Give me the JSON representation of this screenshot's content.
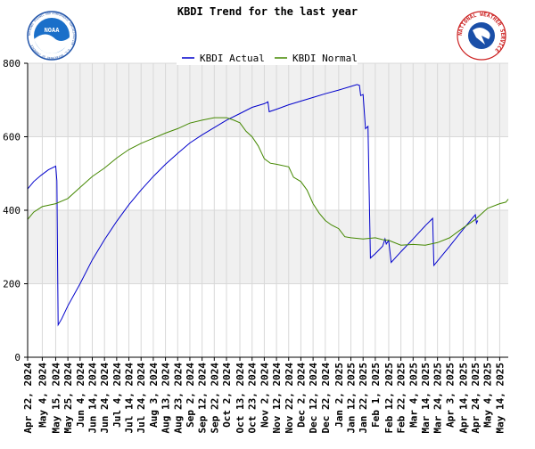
{
  "chart_data": {
    "type": "line",
    "title": "KBDI Trend for the last year",
    "ylim": [
      0,
      800
    ],
    "yticks": [
      0,
      200,
      400,
      600,
      800
    ],
    "grid": true,
    "legend_position": "top-center",
    "x_start": "2024-04-22",
    "x_end": "2025-05-21",
    "xtick_labels": [
      "Apr 22, 2024",
      "May 4, 2024",
      "May 15, 2024",
      "May 25, 2024",
      "Jun 4, 2024",
      "Jun 14, 2024",
      "Jun 24, 2024",
      "Jul 4, 2024",
      "Jul 14, 2024",
      "Jul 24, 2024",
      "Aug 3, 2024",
      "Aug 13, 2024",
      "Aug 23, 2024",
      "Sep 2, 2024",
      "Sep 12, 2024",
      "Sep 22, 2024",
      "Oct 2, 2024",
      "Oct 13, 2024",
      "Oct 23, 2024",
      "Nov 2, 2024",
      "Nov 12, 2024",
      "Nov 22, 2024",
      "Dec 2, 2024",
      "Dec 12, 2024",
      "Dec 22, 2024",
      "Jan 2, 2025",
      "Jan 12, 2025",
      "Jan 22, 2025",
      "Feb 1, 2025",
      "Feb 12, 2025",
      "Feb 22, 2025",
      "Mar 4, 2025",
      "Mar 14, 2025",
      "Mar 24, 2025",
      "Apr 3, 2025",
      "Apr 14, 2025",
      "Apr 24, 2025",
      "May 4, 2025",
      "May 14, 2025"
    ],
    "series": [
      {
        "name": "KBDI Actual",
        "color": "#0000cc",
        "points": [
          [
            "2024-04-22",
            458
          ],
          [
            "2024-04-27",
            478
          ],
          [
            "2024-05-03",
            495
          ],
          [
            "2024-05-09",
            510
          ],
          [
            "2024-05-15",
            520
          ],
          [
            "2024-05-16",
            480
          ],
          [
            "2024-05-17",
            88
          ],
          [
            "2024-05-20",
            105
          ],
          [
            "2024-05-25",
            140
          ],
          [
            "2024-06-04",
            200
          ],
          [
            "2024-06-14",
            265
          ],
          [
            "2024-06-24",
            320
          ],
          [
            "2024-07-04",
            370
          ],
          [
            "2024-07-14",
            415
          ],
          [
            "2024-07-24",
            455
          ],
          [
            "2024-08-03",
            492
          ],
          [
            "2024-08-13",
            525
          ],
          [
            "2024-08-23",
            555
          ],
          [
            "2024-09-02",
            583
          ],
          [
            "2024-09-12",
            605
          ],
          [
            "2024-09-22",
            625
          ],
          [
            "2024-10-02",
            645
          ],
          [
            "2024-10-13",
            663
          ],
          [
            "2024-10-23",
            680
          ],
          [
            "2024-11-02",
            690
          ],
          [
            "2024-11-05",
            695
          ],
          [
            "2024-11-06",
            668
          ],
          [
            "2024-11-12",
            675
          ],
          [
            "2024-11-22",
            687
          ],
          [
            "2024-12-02",
            697
          ],
          [
            "2024-12-12",
            707
          ],
          [
            "2024-12-22",
            717
          ],
          [
            "2025-01-02",
            727
          ],
          [
            "2025-01-12",
            737
          ],
          [
            "2025-01-17",
            742
          ],
          [
            "2025-01-19",
            740
          ],
          [
            "2025-01-20",
            712
          ],
          [
            "2025-01-22",
            715
          ],
          [
            "2025-01-24",
            622
          ],
          [
            "2025-01-26",
            628
          ],
          [
            "2025-01-28",
            270
          ],
          [
            "2025-02-01",
            282
          ],
          [
            "2025-02-07",
            302
          ],
          [
            "2025-02-09",
            322
          ],
          [
            "2025-02-10",
            308
          ],
          [
            "2025-02-12",
            318
          ],
          [
            "2025-02-14",
            258
          ],
          [
            "2025-02-22",
            287
          ],
          [
            "2025-03-04",
            322
          ],
          [
            "2025-03-14",
            358
          ],
          [
            "2025-03-20",
            378
          ],
          [
            "2025-03-21",
            250
          ],
          [
            "2025-03-24",
            262
          ],
          [
            "2025-04-03",
            302
          ],
          [
            "2025-04-14",
            348
          ],
          [
            "2025-04-22",
            380
          ],
          [
            "2025-04-24",
            388
          ],
          [
            "2025-04-25",
            365
          ],
          [
            "2025-04-26",
            372
          ]
        ]
      },
      {
        "name": "KBDI Normal",
        "color": "#448800",
        "points": [
          [
            "2024-04-22",
            375
          ],
          [
            "2024-04-27",
            395
          ],
          [
            "2024-05-04",
            410
          ],
          [
            "2024-05-15",
            418
          ],
          [
            "2024-05-25",
            432
          ],
          [
            "2024-06-04",
            462
          ],
          [
            "2024-06-14",
            492
          ],
          [
            "2024-06-24",
            515
          ],
          [
            "2024-07-04",
            542
          ],
          [
            "2024-07-14",
            565
          ],
          [
            "2024-07-24",
            582
          ],
          [
            "2024-08-03",
            596
          ],
          [
            "2024-08-13",
            610
          ],
          [
            "2024-08-23",
            622
          ],
          [
            "2024-09-02",
            637
          ],
          [
            "2024-09-12",
            645
          ],
          [
            "2024-09-22",
            652
          ],
          [
            "2024-10-02",
            652
          ],
          [
            "2024-10-08",
            645
          ],
          [
            "2024-10-13",
            638
          ],
          [
            "2024-10-18",
            615
          ],
          [
            "2024-10-23",
            600
          ],
          [
            "2024-10-28",
            575
          ],
          [
            "2024-11-02",
            540
          ],
          [
            "2024-11-07",
            528
          ],
          [
            "2024-11-12",
            525
          ],
          [
            "2024-11-22",
            518
          ],
          [
            "2024-11-26",
            490
          ],
          [
            "2024-12-02",
            478
          ],
          [
            "2024-12-07",
            455
          ],
          [
            "2024-12-12",
            418
          ],
          [
            "2024-12-17",
            392
          ],
          [
            "2024-12-22",
            372
          ],
          [
            "2024-12-27",
            360
          ],
          [
            "2025-01-02",
            350
          ],
          [
            "2025-01-07",
            328
          ],
          [
            "2025-01-12",
            325
          ],
          [
            "2025-01-22",
            322
          ],
          [
            "2025-02-01",
            325
          ],
          [
            "2025-02-07",
            320
          ],
          [
            "2025-02-12",
            318
          ],
          [
            "2025-02-22",
            305
          ],
          [
            "2025-03-04",
            307
          ],
          [
            "2025-03-14",
            305
          ],
          [
            "2025-03-24",
            312
          ],
          [
            "2025-04-03",
            325
          ],
          [
            "2025-04-14",
            352
          ],
          [
            "2025-04-24",
            375
          ],
          [
            "2025-05-04",
            405
          ],
          [
            "2025-05-14",
            418
          ],
          [
            "2025-05-19",
            422
          ],
          [
            "2025-05-21",
            430
          ]
        ]
      }
    ]
  },
  "logos": {
    "left": {
      "icon": "noaa-logo-icon",
      "text": "NOAA",
      "ring_text": "NATIONAL OCEANIC AND ATMOSPHERIC ADMINISTRATION · U.S. DEPARTMENT OF COMMERCE"
    },
    "right": {
      "icon": "nws-logo-icon",
      "ring_text": "NATIONAL WEATHER SERVICE"
    }
  },
  "colors": {
    "plot_bg_band": "#f0f0f0",
    "grid": "#d8d8d8",
    "axis": "#000000"
  }
}
